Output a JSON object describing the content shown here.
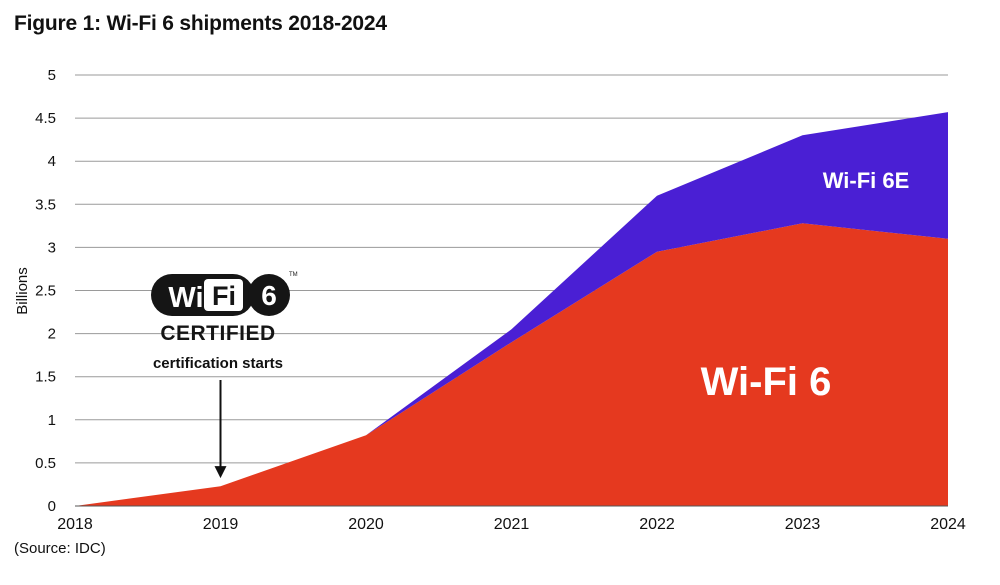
{
  "figure": {
    "title": "Figure 1: Wi-Fi 6 shipments 2018-2024",
    "source": "(Source: IDC)"
  },
  "colors": {
    "wifi6": "#e5391f",
    "wifi6e": "#4a1fd4",
    "grid": "#9a9a9a",
    "text": "#111111"
  },
  "logo": {
    "icon": "wifi-6-certified-logo",
    "wordmark": "Wi Fi 6",
    "certified_label": "CERTIFIED"
  },
  "chart_data": {
    "type": "area",
    "stacked": true,
    "title": "Figure 1: Wi-Fi 6 shipments 2018-2024",
    "xlabel": "",
    "ylabel": "Billions",
    "x": [
      2018,
      2019,
      2020,
      2021,
      2022,
      2023,
      2024
    ],
    "x_tick_labels": [
      "2018",
      "2019",
      "2020",
      "2021",
      "2022",
      "2023",
      "2024"
    ],
    "ylim": [
      0,
      5
    ],
    "y_ticks": [
      0,
      0.5,
      1,
      1.5,
      2,
      2.5,
      3,
      3.5,
      4,
      4.5,
      5
    ],
    "y_tick_labels": [
      "0",
      "0.5",
      "1",
      "1.5",
      "2",
      "2.5",
      "3",
      "3.5",
      "4",
      "4.5",
      "5"
    ],
    "grid": true,
    "series": [
      {
        "name": "Wi-Fi 6",
        "color": "#e5391f",
        "values": [
          0,
          0.23,
          0.82,
          1.9,
          2.95,
          3.28,
          3.1
        ]
      },
      {
        "name": "Wi-Fi 6E",
        "color": "#4a1fd4",
        "values": [
          0,
          0,
          0,
          0.15,
          0.65,
          1.02,
          1.47
        ]
      }
    ],
    "annotations": [
      {
        "text": "certification starts",
        "x": 2019,
        "y": 0.23,
        "arrow": true
      }
    ]
  }
}
